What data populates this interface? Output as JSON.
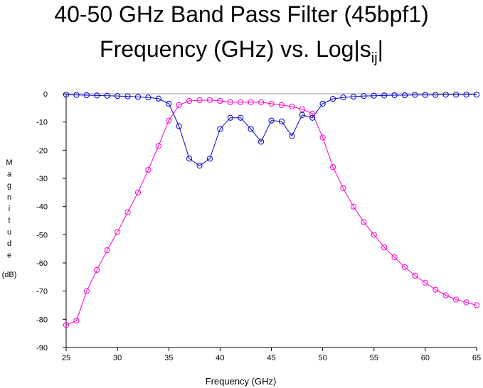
{
  "chart_data": {
    "type": "line",
    "title": "40-50 GHz Band Pass Filter (45bpf1)",
    "subtitle": {
      "main": "Frequency (GHz) vs. Log|s",
      "sub": "ij",
      "tail": "|"
    },
    "xlabel": "Frequency (GHz)",
    "ylabel_letters": [
      "M",
      "a",
      "g",
      "n",
      "i",
      "t",
      "u",
      "d",
      "e"
    ],
    "ylabel_unit": "(dB)",
    "xlim": [
      25,
      65
    ],
    "ylim": [
      -90,
      0
    ],
    "xticks": [
      25,
      30,
      35,
      40,
      45,
      50,
      55,
      60,
      65
    ],
    "yticks": [
      0,
      -10,
      -20,
      -30,
      -40,
      -50,
      -60,
      -70,
      -80,
      -90
    ],
    "x": [
      25,
      26,
      27,
      28,
      29,
      30,
      31,
      32,
      33,
      34,
      35,
      36,
      37,
      38,
      39,
      40,
      41,
      42,
      43,
      44,
      45,
      46,
      47,
      48,
      49,
      50,
      51,
      52,
      53,
      54,
      55,
      56,
      57,
      58,
      59,
      60,
      61,
      62,
      63,
      64,
      65
    ],
    "series": [
      {
        "color": "#ff00cc",
        "values": [
          -82,
          -80.5,
          -70,
          -62.5,
          -55.5,
          -49,
          -42,
          -35,
          -27,
          -18.5,
          -9.5,
          -4,
          -2.5,
          -2.3,
          -2.2,
          -2.5,
          -3,
          -3,
          -3,
          -3,
          -3.5,
          -4,
          -4.5,
          -5.5,
          -7,
          -15.5,
          -26,
          -33.5,
          -40,
          -45.5,
          -50,
          -54.5,
          -58,
          -61.5,
          -64.5,
          -67,
          -69.5,
          -71.5,
          -73,
          -74,
          -75
        ]
      },
      {
        "color": "#0000cc",
        "values": [
          -0.3,
          -0.4,
          -0.5,
          -0.6,
          -0.7,
          -0.8,
          -0.9,
          -1.1,
          -1.3,
          -1.7,
          -3.5,
          -11.5,
          -23,
          -25.5,
          -23,
          -12.5,
          -8.5,
          -8.5,
          -12.5,
          -17,
          -9.5,
          -9.8,
          -15,
          -7.5,
          -8.5,
          -3.5,
          -1.8,
          -1.3,
          -1,
          -0.8,
          -0.7,
          -0.6,
          -0.5,
          -0.5,
          -0.4,
          -0.4,
          -0.4,
          -0.3,
          -0.3,
          -0.3,
          -0.3
        ]
      }
    ]
  }
}
